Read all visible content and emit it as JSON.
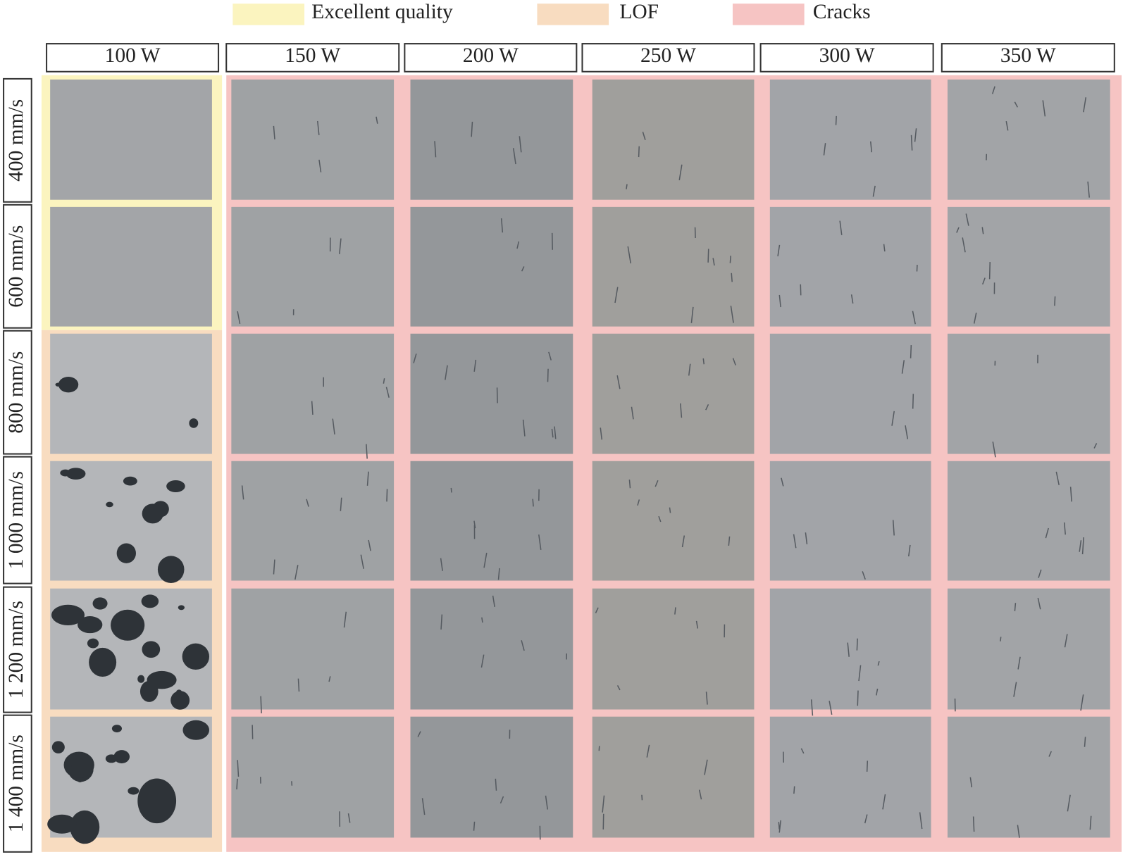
{
  "legend": [
    {
      "label": "Excellent quality",
      "color": "#fbf4bf"
    },
    {
      "label": "LOF",
      "color": "#f8dcc0"
    },
    {
      "label": "Cracks",
      "color": "#f6c4c3"
    }
  ],
  "columns": [
    "100 W",
    "150 W",
    "200 W",
    "250 W",
    "300 W",
    "350 W"
  ],
  "rows": [
    "400 mm/s",
    "600 mm/s",
    "800 mm/s",
    "1 000 mm/s",
    "1 200 mm/s",
    "1 400 mm/s"
  ]
}
